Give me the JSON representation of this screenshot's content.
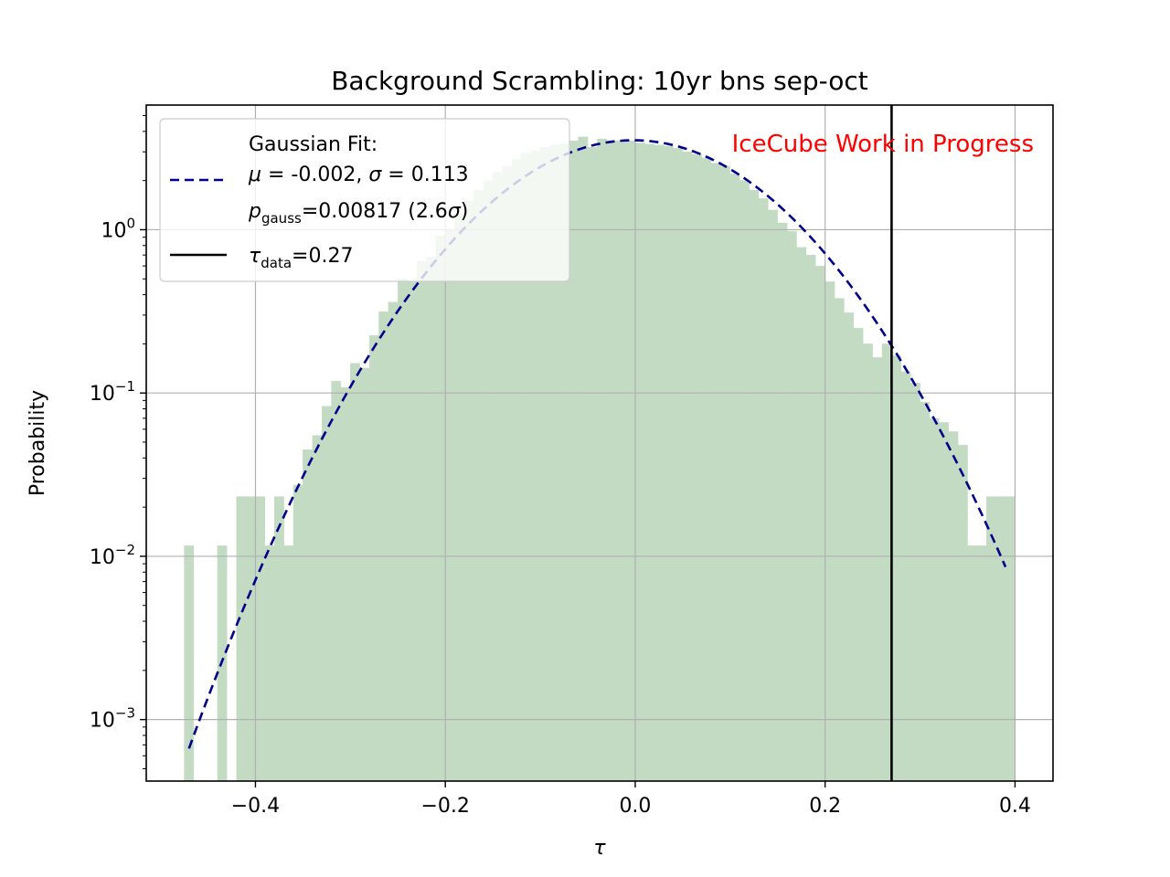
{
  "chart_data": {
    "type": "histogram",
    "title": "Background Scrambling: 10yr bns sep-oct",
    "xlabel": "τ",
    "ylabel": "Probability",
    "y_scale": "log",
    "xlim": [
      -0.515,
      0.44
    ],
    "ylim": [
      0.00042,
      5.8
    ],
    "x_ticks": [
      -0.4,
      -0.2,
      0.0,
      0.2,
      0.4
    ],
    "x_tick_labels": [
      "−0.4",
      "−0.2",
      "0.0",
      "0.2",
      "0.4"
    ],
    "y_ticks": [
      0.001,
      0.01,
      0.1,
      1
    ],
    "y_tick_labels": [
      {
        "base": "10",
        "exp": "−3"
      },
      {
        "base": "10",
        "exp": "−2"
      },
      {
        "base": "10",
        "exp": "−1"
      },
      {
        "base": "10",
        "exp": "0"
      }
    ],
    "grid": true,
    "histogram": {
      "color": "#c3dbc3",
      "bins": [
        [
          -0.475,
          -0.465,
          0.0116
        ],
        [
          -0.44,
          -0.43,
          0.0116
        ],
        [
          -0.42,
          -0.41,
          0.0232
        ],
        [
          -0.41,
          -0.4,
          0.0232
        ],
        [
          -0.4,
          -0.39,
          0.0232
        ],
        [
          -0.39,
          -0.38,
          0.0116
        ],
        [
          -0.38,
          -0.37,
          0.0232
        ],
        [
          -0.37,
          -0.36,
          0.0116
        ],
        [
          -0.36,
          -0.35,
          0.0273
        ],
        [
          -0.35,
          -0.34,
          0.045
        ],
        [
          -0.34,
          -0.33,
          0.055
        ],
        [
          -0.33,
          -0.32,
          0.083
        ],
        [
          -0.32,
          -0.31,
          0.118
        ],
        [
          -0.31,
          -0.3,
          0.108
        ],
        [
          -0.3,
          -0.29,
          0.152
        ],
        [
          -0.29,
          -0.28,
          0.142
        ],
        [
          -0.28,
          -0.27,
          0.225
        ],
        [
          -0.27,
          -0.26,
          0.315
        ],
        [
          -0.26,
          -0.25,
          0.36
        ],
        [
          -0.25,
          -0.24,
          0.5
        ],
        [
          -0.24,
          -0.23,
          0.48
        ],
        [
          -0.23,
          -0.22,
          0.64
        ],
        [
          -0.22,
          -0.21,
          0.68
        ],
        [
          -0.21,
          -0.2,
          0.92
        ],
        [
          -0.2,
          -0.19,
          1.0
        ],
        [
          -0.19,
          -0.18,
          1.25
        ],
        [
          -0.18,
          -0.17,
          1.5
        ],
        [
          -0.17,
          -0.16,
          1.75
        ],
        [
          -0.16,
          -0.15,
          2.0
        ],
        [
          -0.15,
          -0.14,
          2.25
        ],
        [
          -0.14,
          -0.13,
          2.45
        ],
        [
          -0.13,
          -0.12,
          2.7
        ],
        [
          -0.12,
          -0.11,
          2.95
        ],
        [
          -0.11,
          -0.1,
          3.05
        ],
        [
          -0.1,
          -0.09,
          3.2
        ],
        [
          -0.09,
          -0.08,
          3.3
        ],
        [
          -0.08,
          -0.07,
          3.35
        ],
        [
          -0.07,
          -0.06,
          3.5
        ],
        [
          -0.06,
          -0.05,
          3.7
        ],
        [
          -0.05,
          -0.04,
          3.2
        ],
        [
          -0.04,
          -0.03,
          3.6
        ],
        [
          -0.03,
          -0.02,
          3.5
        ],
        [
          -0.02,
          -0.01,
          3.5
        ],
        [
          -0.01,
          0.0,
          3.5
        ],
        [
          0.0,
          0.01,
          3.4
        ],
        [
          0.01,
          0.02,
          3.35
        ],
        [
          0.02,
          0.03,
          3.3
        ],
        [
          0.03,
          0.04,
          3.25
        ],
        [
          0.04,
          0.05,
          3.15
        ],
        [
          0.05,
          0.06,
          3.0
        ],
        [
          0.06,
          0.07,
          2.9
        ],
        [
          0.07,
          0.08,
          2.75
        ],
        [
          0.08,
          0.09,
          2.55
        ],
        [
          0.09,
          0.1,
          2.45
        ],
        [
          0.1,
          0.11,
          2.2
        ],
        [
          0.11,
          0.12,
          2.0
        ],
        [
          0.12,
          0.13,
          1.75
        ],
        [
          0.13,
          0.14,
          1.55
        ],
        [
          0.14,
          0.15,
          1.32
        ],
        [
          0.15,
          0.16,
          1.1
        ],
        [
          0.16,
          0.17,
          0.98
        ],
        [
          0.17,
          0.18,
          0.78
        ],
        [
          0.18,
          0.19,
          0.7
        ],
        [
          0.19,
          0.2,
          0.6
        ],
        [
          0.2,
          0.21,
          0.48
        ],
        [
          0.21,
          0.22,
          0.38
        ],
        [
          0.22,
          0.23,
          0.31
        ],
        [
          0.23,
          0.24,
          0.25
        ],
        [
          0.24,
          0.25,
          0.2
        ],
        [
          0.25,
          0.26,
          0.165
        ],
        [
          0.26,
          0.27,
          0.2
        ],
        [
          0.27,
          0.28,
          0.17
        ],
        [
          0.28,
          0.29,
          0.135
        ],
        [
          0.29,
          0.3,
          0.115
        ],
        [
          0.3,
          0.31,
          0.088
        ],
        [
          0.31,
          0.32,
          0.07
        ],
        [
          0.32,
          0.33,
          0.066
        ],
        [
          0.33,
          0.34,
          0.058
        ],
        [
          0.34,
          0.35,
          0.048
        ],
        [
          0.35,
          0.36,
          0.0116
        ],
        [
          0.36,
          0.37,
          0.0116
        ],
        [
          0.37,
          0.38,
          0.0232
        ],
        [
          0.38,
          0.39,
          0.0232
        ],
        [
          0.39,
          0.4,
          0.0232
        ]
      ]
    },
    "gaussian_fit": {
      "mu": -0.002,
      "sigma": 0.113,
      "x_range": [
        -0.47,
        0.39
      ],
      "color": "#00008b",
      "style": "dashed"
    },
    "tau_data": {
      "value": 0.27,
      "color": "#000000"
    },
    "legend": {
      "placement": "upper-left",
      "fit_heading": "Gaussian Fit:",
      "fit_params": {
        "mu_label": "μ",
        "mu_text": " = -0.002, ",
        "sigma_label": "σ",
        "sigma_text": " = 0.113"
      },
      "pgauss": {
        "base": "p",
        "sub": "gauss",
        "value": "=0.00817 (2.6",
        "sigma": "σ",
        "close": ")"
      },
      "tau": {
        "base": "τ",
        "sub": "data",
        "value": "=0.27"
      }
    },
    "annotation": {
      "text": "IceCube Work in Progress",
      "color": "#ff0000",
      "placement": "top-right"
    }
  }
}
